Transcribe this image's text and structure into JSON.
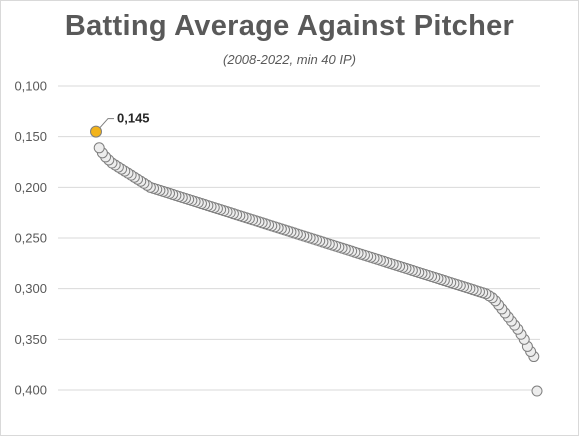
{
  "chart_data": {
    "type": "scatter",
    "title": "Batting Average Against Pitcher",
    "subtitle": "(2008-2022, min 40 IP)",
    "xlabel": "",
    "ylabel": "",
    "y_axis": {
      "min": 0.1,
      "max": 0.4,
      "inverted": true,
      "ticks": [
        0.1,
        0.15,
        0.2,
        0.25,
        0.3,
        0.35,
        0.4
      ],
      "tick_labels": [
        "0,100",
        "0,150",
        "0,200",
        "0,250",
        "0,300",
        "0,350",
        "0,400"
      ]
    },
    "grid": true,
    "legend": "none",
    "series": [
      {
        "values": [
          0.145,
          0.161,
          0.166,
          0.17,
          0.173,
          0.176,
          0.178,
          0.18,
          0.182,
          0.184,
          0.186,
          0.188,
          0.19,
          0.192,
          0.194,
          0.196,
          0.198,
          0.2,
          0.201,
          0.202,
          0.203,
          0.204,
          0.205,
          0.206,
          0.207,
          0.208,
          0.209,
          0.21,
          0.211,
          0.212,
          0.213,
          0.214,
          0.215,
          0.216,
          0.217,
          0.218,
          0.219,
          0.22,
          0.221,
          0.222,
          0.223,
          0.224,
          0.225,
          0.226,
          0.227,
          0.228,
          0.229,
          0.23,
          0.231,
          0.232,
          0.233,
          0.234,
          0.235,
          0.236,
          0.237,
          0.238,
          0.239,
          0.24,
          0.241,
          0.242,
          0.243,
          0.244,
          0.245,
          0.246,
          0.247,
          0.248,
          0.249,
          0.25,
          0.251,
          0.252,
          0.253,
          0.254,
          0.255,
          0.256,
          0.257,
          0.258,
          0.259,
          0.26,
          0.261,
          0.262,
          0.263,
          0.264,
          0.265,
          0.266,
          0.267,
          0.268,
          0.269,
          0.27,
          0.271,
          0.272,
          0.273,
          0.274,
          0.275,
          0.276,
          0.277,
          0.278,
          0.279,
          0.28,
          0.281,
          0.282,
          0.283,
          0.284,
          0.285,
          0.286,
          0.287,
          0.288,
          0.289,
          0.29,
          0.291,
          0.292,
          0.293,
          0.294,
          0.295,
          0.296,
          0.297,
          0.298,
          0.299,
          0.3,
          0.301,
          0.302,
          0.303,
          0.304,
          0.305,
          0.307,
          0.309,
          0.312,
          0.316,
          0.32,
          0.324,
          0.328,
          0.332,
          0.336,
          0.34,
          0.345,
          0.35,
          0.357,
          0.362,
          0.367,
          0.401
        ]
      }
    ],
    "annotations": [
      {
        "label": "0,145",
        "value": 0.145,
        "point_index": 0
      }
    ],
    "colors": {
      "point_fill": "#ededed",
      "point_stroke": "#7f7f7f",
      "highlight_fill": "#f2b31a",
      "text": "#595959",
      "grid": "#d9d9d9"
    }
  }
}
